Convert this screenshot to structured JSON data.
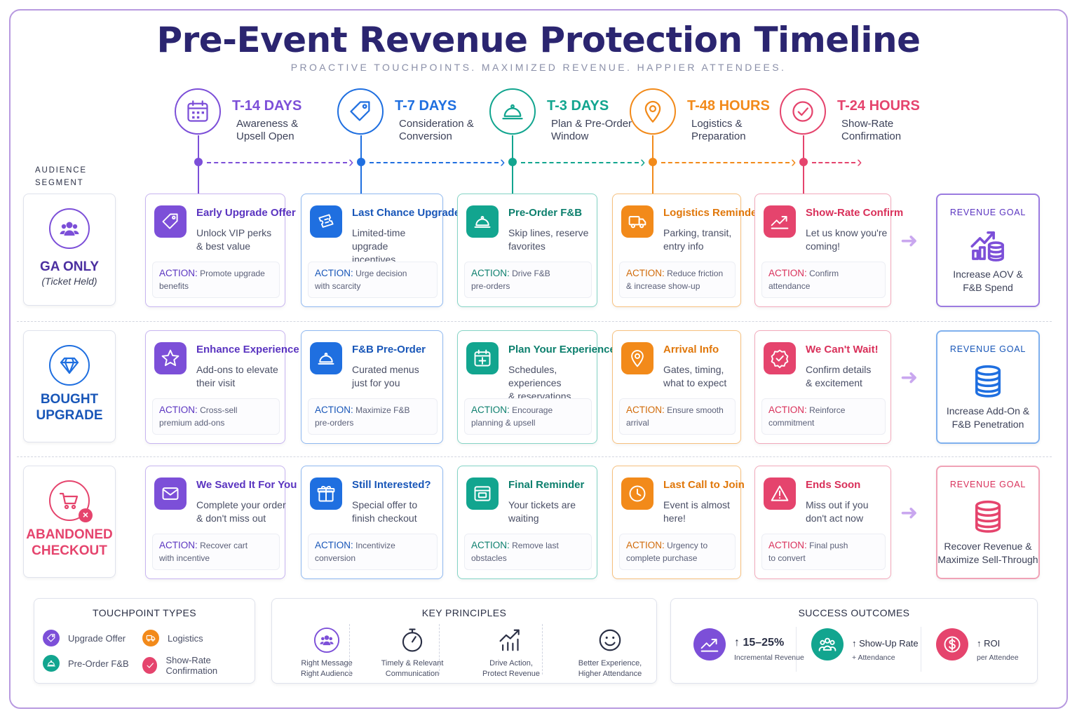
{
  "title": "Pre-Event Revenue Protection Timeline",
  "subtitle": "PROACTIVE TOUCHPOINTS. MAXIMIZED REVENUE. HAPPIER ATTENDEES.",
  "audience_label": [
    "AUDIENCE",
    "SEGMENT"
  ],
  "colors": {
    "purple": "#7c4fd8",
    "blue": "#1f6fe0",
    "teal": "#12a58f",
    "orange": "#f28a1a",
    "pink": "#e5446d",
    "navy": "#2b2570"
  },
  "phases": [
    {
      "title": "T-14 DAYS",
      "lines": [
        "Awareness &",
        "Upsell Open"
      ],
      "icon": "calendar-icon",
      "color": "#7c4fd8"
    },
    {
      "title": "T-7 DAYS",
      "lines": [
        "Consideration &",
        "Conversion"
      ],
      "icon": "tag-icon",
      "color": "#1f6fe0"
    },
    {
      "title": "T-3 DAYS",
      "lines": [
        "Plan & Pre-Order",
        "Window"
      ],
      "icon": "cloche-icon",
      "color": "#12a58f"
    },
    {
      "title": "T-48 HOURS",
      "lines": [
        "Logistics &",
        "Preparation"
      ],
      "icon": "map-pin-icon",
      "color": "#f28a1a"
    },
    {
      "title": "T-24 HOURS",
      "lines": [
        "Show-Rate",
        "Confirmation"
      ],
      "icon": "check-circle-icon",
      "color": "#e5446d"
    }
  ],
  "rows": [
    {
      "segment": {
        "name_lines": [
          "GA ONLY"
        ],
        "sub": "(Ticket Held)",
        "color": "#7c4fd8",
        "icon": "people-icon"
      },
      "cards": [
        {
          "title": "Early Upgrade Offer",
          "desc": [
            "Unlock VIP perks",
            "& best value"
          ],
          "action_label": "ACTION:",
          "action_text": [
            "Promote upgrade",
            "benefits"
          ],
          "icon": "tag-icon"
        },
        {
          "title": "Last Chance Upgrade",
          "desc": [
            "Limited-time upgrade",
            "incentives"
          ],
          "action_label": "ACTION:",
          "action_text": [
            "Urge decision",
            "with scarcity"
          ],
          "icon": "ticket-icon"
        },
        {
          "title": "Pre-Order F&B",
          "desc": [
            "Skip lines, reserve",
            "favorites"
          ],
          "action_label": "ACTION:",
          "action_text": [
            "Drive F&B",
            "pre-orders"
          ],
          "icon": "cloche-icon"
        },
        {
          "title": "Logistics Reminder",
          "desc": [
            "Parking, transit,",
            "entry info"
          ],
          "action_label": "ACTION:",
          "action_text": [
            "Reduce friction",
            "& increase show-up"
          ],
          "icon": "truck-icon"
        },
        {
          "title": "Show-Rate Confirm",
          "desc": [
            "Let us know you're",
            "coming!"
          ],
          "action_label": "ACTION:",
          "action_text": [
            "Confirm",
            "attendance"
          ],
          "icon": "trend-up-icon"
        }
      ],
      "goal": {
        "label": "REVENUE GOAL",
        "text": [
          "Increase AOV &",
          "F&B Spend"
        ],
        "icon": "growth-coins-icon",
        "color": "#7c4fd8"
      }
    },
    {
      "segment": {
        "name_lines": [
          "BOUGHT",
          "UPGRADE"
        ],
        "sub": "",
        "color": "#1f6fe0",
        "icon": "diamond-icon"
      },
      "cards": [
        {
          "title": "Enhance Experience",
          "desc": [
            "Add-ons to elevate",
            "their visit"
          ],
          "action_label": "ACTION:",
          "action_text": [
            "Cross-sell",
            "premium add-ons"
          ],
          "icon": "star-icon"
        },
        {
          "title": "F&B Pre-Order",
          "desc": [
            "Curated menus",
            "just for you"
          ],
          "action_label": "ACTION:",
          "action_text": [
            "Maximize F&B",
            "pre-orders"
          ],
          "icon": "cloche-icon"
        },
        {
          "title": "Plan Your Experience",
          "desc": [
            "Schedules, experiences",
            "& reservations"
          ],
          "action_label": "ACTION:",
          "action_text": [
            "Encourage",
            "planning & upsell"
          ],
          "icon": "calendar-plus-icon"
        },
        {
          "title": "Arrival Info",
          "desc": [
            "Gates, timing,",
            "what to expect"
          ],
          "action_label": "ACTION:",
          "action_text": [
            "Ensure smooth",
            "arrival"
          ],
          "icon": "map-pin-icon"
        },
        {
          "title": "We Can't Wait!",
          "desc": [
            "Confirm details",
            "& excitement"
          ],
          "action_label": "ACTION:",
          "action_text": [
            "Reinforce",
            "commitment"
          ],
          "icon": "badge-check-icon"
        }
      ],
      "goal": {
        "label": "REVENUE GOAL",
        "text": [
          "Increase Add-On &",
          "F&B Penetration"
        ],
        "icon": "coins-icon",
        "color": "#1f6fe0"
      }
    },
    {
      "segment": {
        "name_lines": [
          "ABANDONED",
          "CHECKOUT"
        ],
        "sub": "",
        "color": "#e5446d",
        "icon": "cart-x-icon"
      },
      "cards": [
        {
          "title": "We Saved It For You",
          "desc": [
            "Complete your order",
            "& don't miss out"
          ],
          "action_label": "ACTION:",
          "action_text": [
            "Recover cart",
            "with incentive"
          ],
          "icon": "mail-icon"
        },
        {
          "title": "Still Interested?",
          "desc": [
            "Special offer to",
            "finish checkout"
          ],
          "action_label": "ACTION:",
          "action_text": [
            "Incentivize",
            "conversion"
          ],
          "icon": "gift-icon"
        },
        {
          "title": "Final Reminder",
          "desc": [
            "Your tickets are",
            "waiting"
          ],
          "action_label": "ACTION:",
          "action_text": [
            "Remove last",
            "obstacles"
          ],
          "icon": "ticket-window-icon"
        },
        {
          "title": "Last Call to Join",
          "desc": [
            "Event is almost",
            "here!"
          ],
          "action_label": "ACTION:",
          "action_text": [
            "Urgency to",
            "complete purchase"
          ],
          "icon": "clock-icon"
        },
        {
          "title": "Ends Soon",
          "desc": [
            "Miss out if you",
            "don't act now"
          ],
          "action_label": "ACTION:",
          "action_text": [
            "Final push",
            "to convert"
          ],
          "icon": "warning-icon"
        }
      ],
      "goal": {
        "label": "REVENUE GOAL",
        "text": [
          "Recover Revenue &",
          "Maximize Sell-Through"
        ],
        "icon": "coins-icon",
        "color": "#e5446d"
      }
    }
  ],
  "touchpoint_types": {
    "title": "TOUCHPOINT TYPES",
    "items": [
      {
        "label": "Upgrade Offer",
        "color": "#7c4fd8",
        "icon": "tag-icon"
      },
      {
        "label": "Logistics",
        "color": "#f28a1a",
        "icon": "truck-icon"
      },
      {
        "label": "Pre-Order F&B",
        "color": "#12a58f",
        "icon": "cloche-icon"
      },
      {
        "label": "Show-Rate Confirmation",
        "color": "#e5446d",
        "icon": "check-icon"
      }
    ]
  },
  "key_principles": {
    "title": "KEY PRINCIPLES",
    "items": [
      {
        "lines": [
          "Right Message",
          "Right Audience"
        ],
        "icon": "people-icon"
      },
      {
        "lines": [
          "Timely & Relevant",
          "Communication"
        ],
        "icon": "stopwatch-icon"
      },
      {
        "lines": [
          "Drive Action,",
          "Protect Revenue"
        ],
        "icon": "bar-trend-icon"
      },
      {
        "lines": [
          "Better Experience,",
          "Higher Attendance"
        ],
        "icon": "smile-icon"
      }
    ]
  },
  "success_outcomes": {
    "title": "SUCCESS OUTCOMES",
    "items": [
      {
        "big": "↑ 15–25%",
        "small": "Incremental Revenue",
        "color": "#7c4fd8",
        "icon": "trend-up-icon"
      },
      {
        "big": "↑ Show-Up Rate",
        "small": "+ Attendance",
        "color": "#12a58f",
        "icon": "group-icon"
      },
      {
        "big": "↑ ROI",
        "small": "per Attendee",
        "color": "#e5446d",
        "icon": "dollar-icon"
      }
    ]
  }
}
